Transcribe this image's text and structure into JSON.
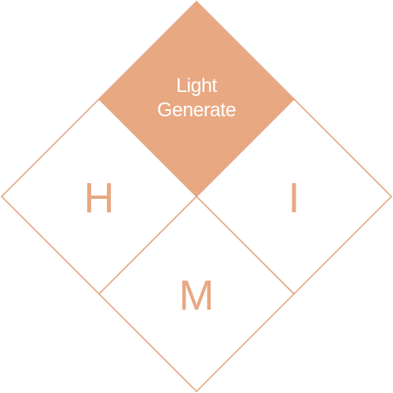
{
  "colors": {
    "accent": "#e8a882",
    "stroke": "#e3a683",
    "top_text": "#ffffff",
    "letter_text": "#e8a882"
  },
  "diagram": {
    "top": {
      "line1": "Light",
      "line2": "Generate",
      "filled": true
    },
    "left": {
      "label": "H",
      "filled": false
    },
    "right": {
      "label": "I",
      "filled": false
    },
    "bottom": {
      "label": "M",
      "filled": false
    }
  }
}
